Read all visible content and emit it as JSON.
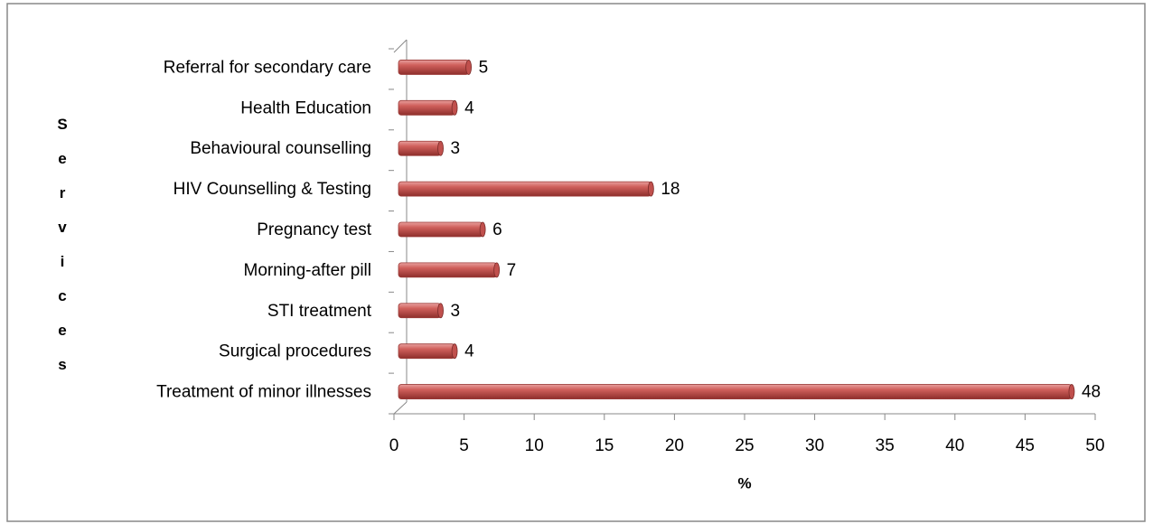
{
  "chart_data": {
    "type": "bar",
    "orientation": "horizontal",
    "categories": [
      "Treatment of minor illnesses",
      "Surgical procedures",
      "STI treatment",
      "Morning-after pill",
      "Pregnancy test",
      "HIV Counselling & Testing",
      "Behavioural counselling",
      "Health Education",
      "Referral for secondary care"
    ],
    "values": [
      48,
      4,
      3,
      7,
      6,
      18,
      3,
      4,
      5
    ],
    "color": "#c0504d",
    "xlim": [
      0,
      50
    ],
    "xticks": [
      0,
      5,
      10,
      15,
      20,
      25,
      30,
      35,
      40,
      45,
      50
    ],
    "xlabel": "%",
    "ylabel": "Services",
    "grid": false
  }
}
